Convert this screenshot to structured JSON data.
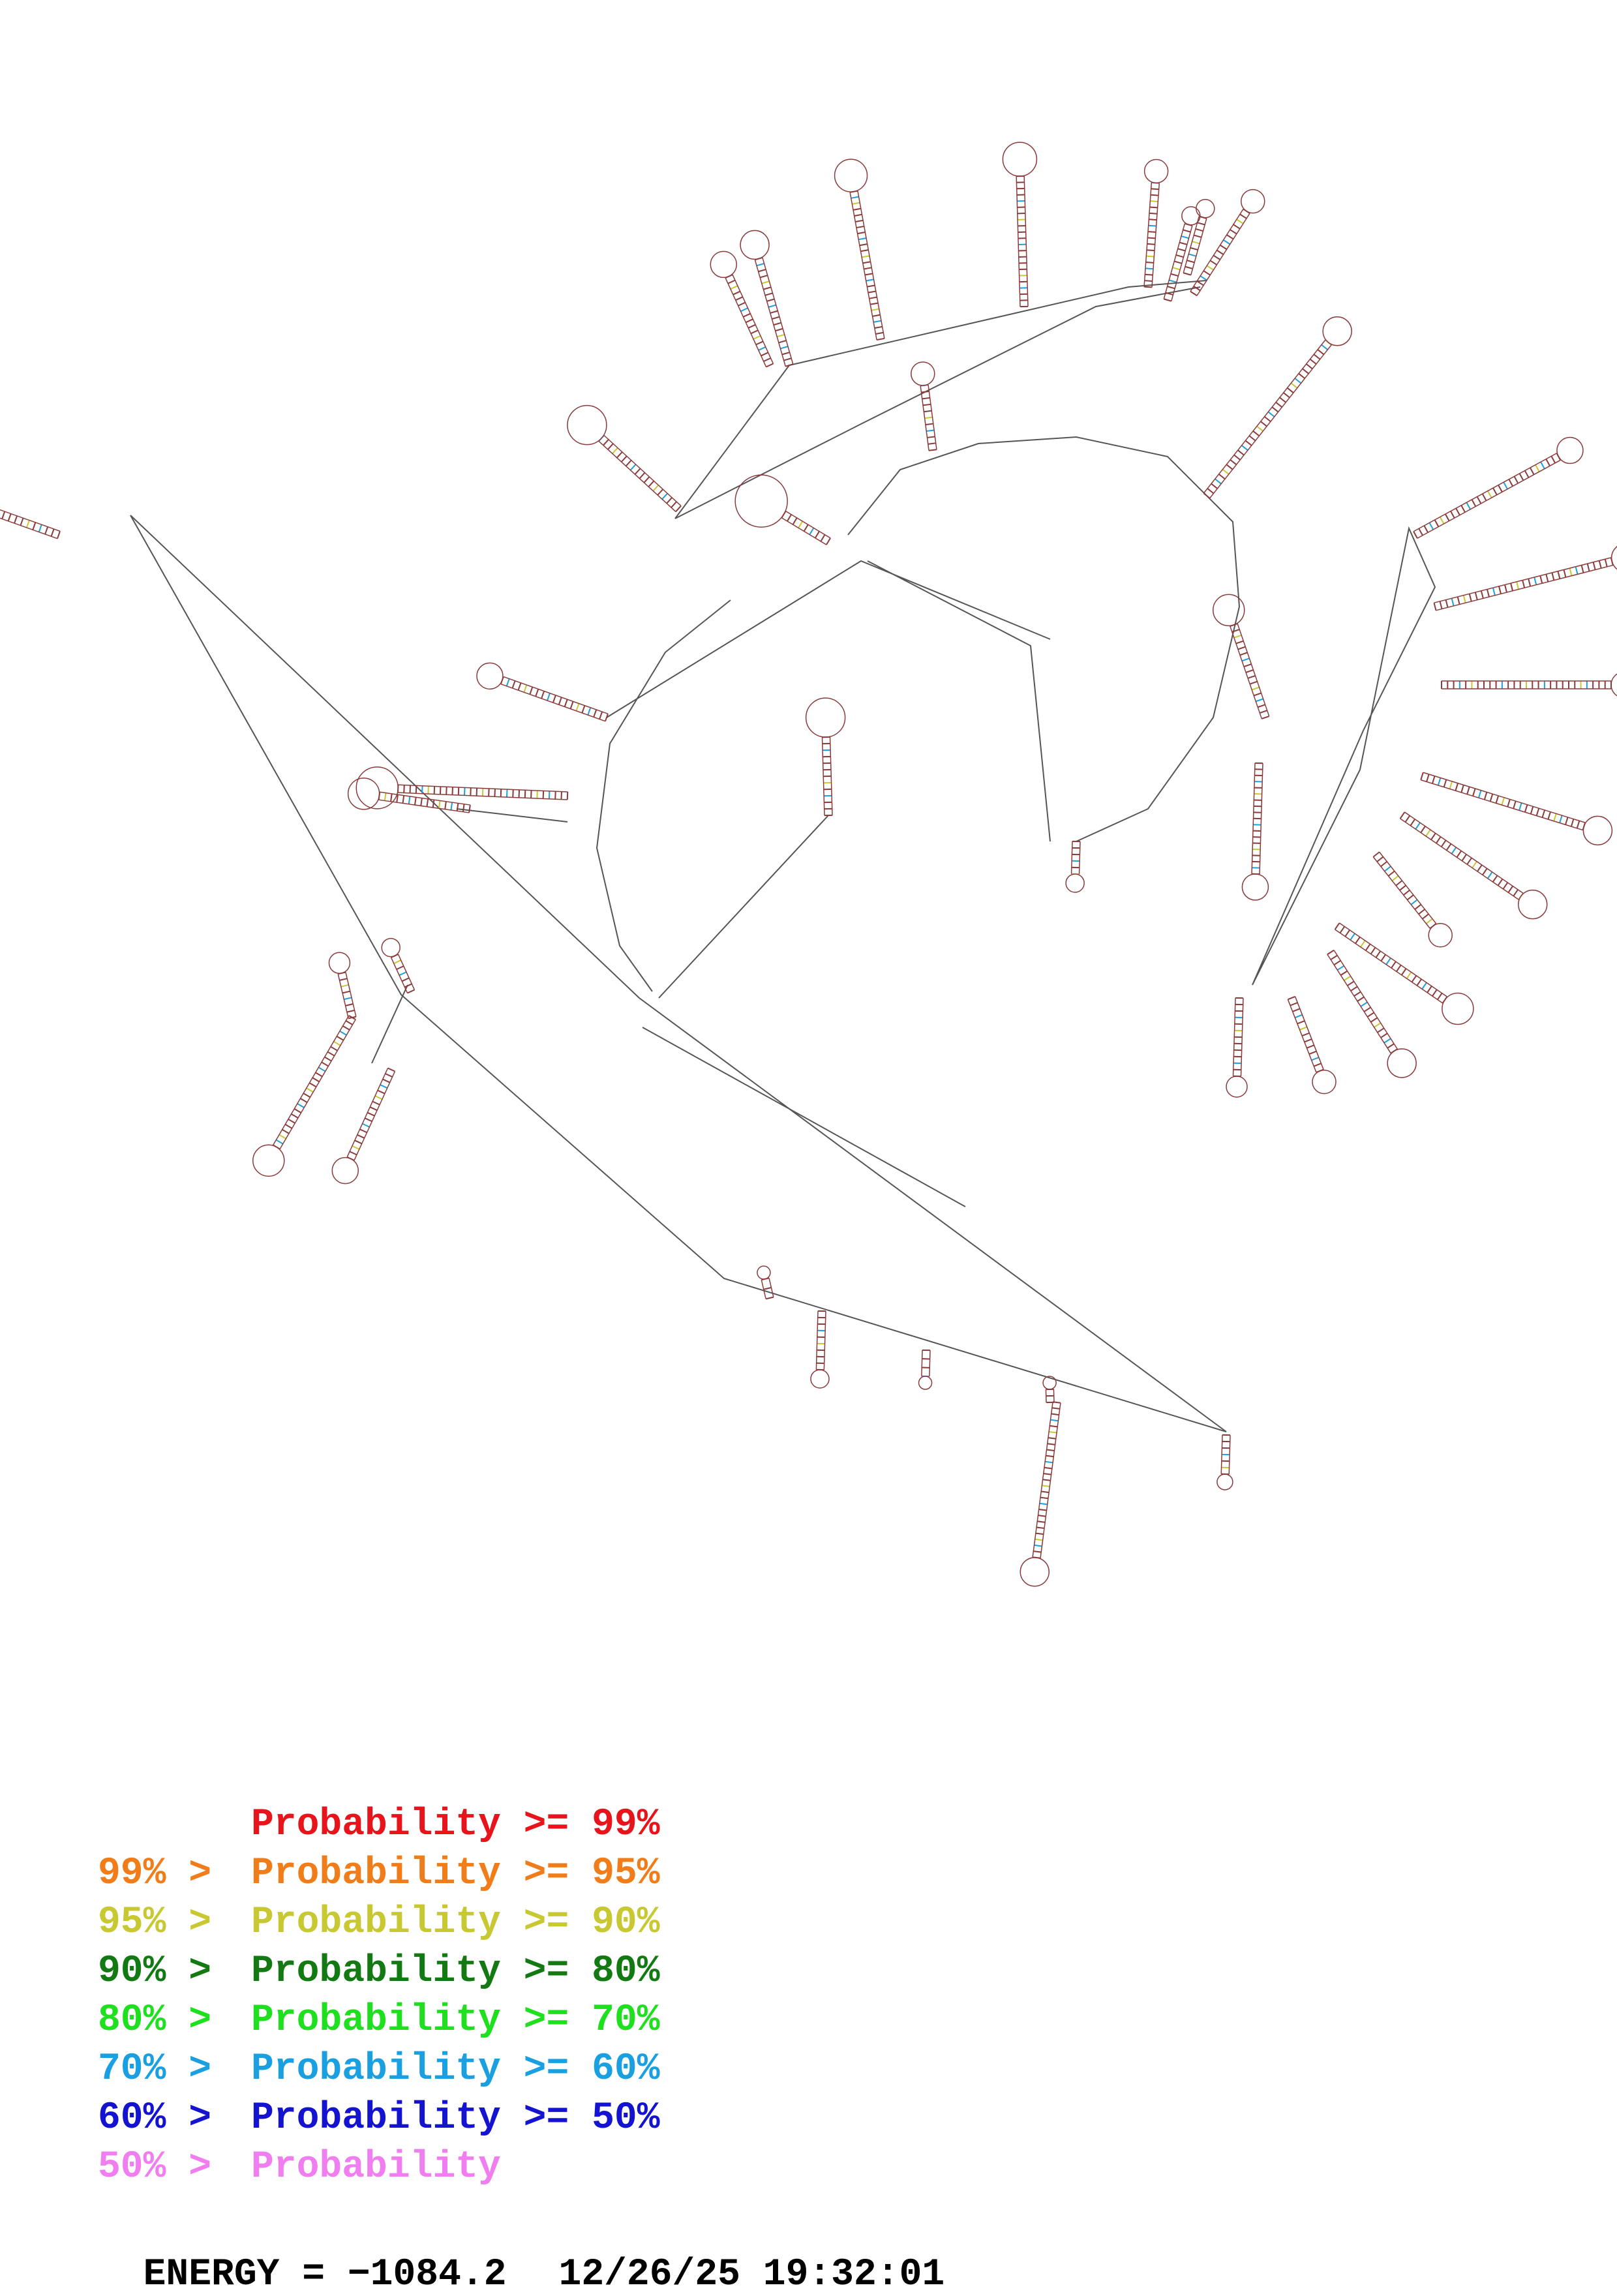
{
  "legend": [
    {
      "left": "",
      "right": "Probability >= 99%",
      "color": "#e8141c"
    },
    {
      "left": "99% >",
      "right": "Probability >= 95%",
      "color": "#f07d1a"
    },
    {
      "left": "95% >",
      "right": "Probability >= 90%",
      "color": "#c8c832"
    },
    {
      "left": "90% >",
      "right": "Probability >= 80%",
      "color": "#137a13"
    },
    {
      "left": "80% >",
      "right": "Probability >= 70%",
      "color": "#1ee01e"
    },
    {
      "left": "70% >",
      "right": "Probability >= 60%",
      "color": "#1aa0e0"
    },
    {
      "left": "60% >",
      "right": "Probability >= 50%",
      "color": "#1414d0"
    },
    {
      "left": "50% >",
      "right": "Probability",
      "color": "#f07ef0"
    }
  ],
  "energy": {
    "label": "ENERGY = −1084.2",
    "timestamp": "12/26/25 19:32:01"
  },
  "diagram": {
    "line_color": "#555555",
    "base_color": "#8b3a3a"
  }
}
